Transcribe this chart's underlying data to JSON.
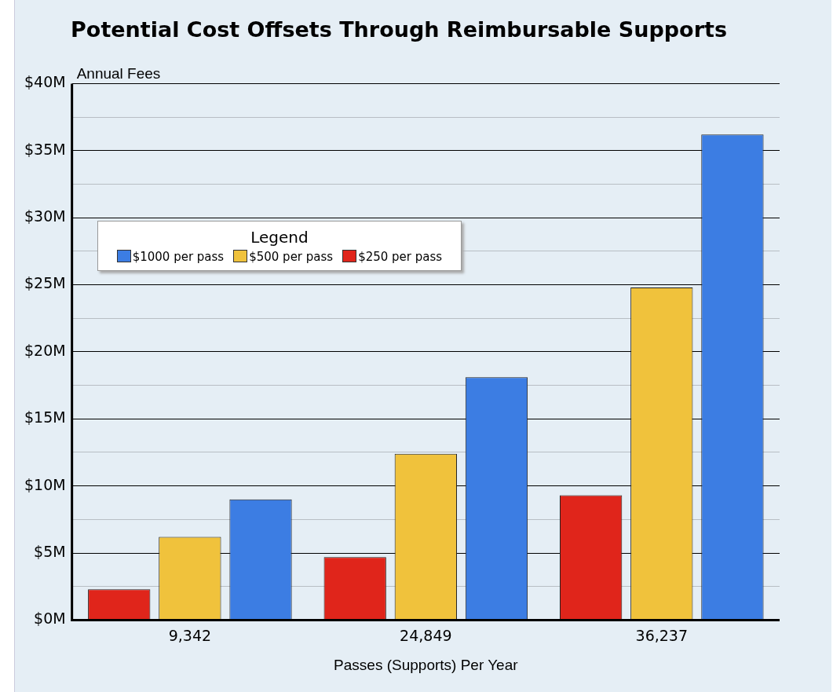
{
  "chart_data": {
    "type": "bar",
    "title": "Potential Cost Offsets Through Reimbursable Supports",
    "xlabel": "Passes (Supports) Per Year",
    "ylabel": "Annual Fees",
    "legend_title": "Legend",
    "categories": [
      "9,342",
      "24,849",
      "36,237"
    ],
    "series": [
      {
        "name": "$250 per pass",
        "color": "#e0251b",
        "values": [
          2.3,
          4.7,
          9.3
        ]
      },
      {
        "name": "$500 per pass",
        "color": "#f0c23c",
        "values": [
          6.2,
          12.4,
          24.8
        ]
      },
      {
        "name": "$1000 per pass",
        "color": "#3c7de3",
        "values": [
          9.0,
          18.1,
          36.2
        ]
      }
    ],
    "ylim": [
      0,
      40
    ],
    "yticks": [
      {
        "value": 0,
        "label": "$0M"
      },
      {
        "value": 2.5,
        "label": null
      },
      {
        "value": 5,
        "label": "$5M"
      },
      {
        "value": 7.5,
        "label": null
      },
      {
        "value": 10,
        "label": "$10M"
      },
      {
        "value": 12.5,
        "label": null
      },
      {
        "value": 15,
        "label": "$15M"
      },
      {
        "value": 17.5,
        "label": null
      },
      {
        "value": 20,
        "label": "$20M"
      },
      {
        "value": 22.5,
        "label": null
      },
      {
        "value": 25,
        "label": "$25M"
      },
      {
        "value": 27.5,
        "label": null
      },
      {
        "value": 30,
        "label": "$30M"
      },
      {
        "value": 32.5,
        "label": null
      },
      {
        "value": 35,
        "label": "$35M"
      },
      {
        "value": 37.5,
        "label": null
      },
      {
        "value": 40,
        "label": "$40M"
      }
    ],
    "grid": "y",
    "legend": "top left"
  }
}
